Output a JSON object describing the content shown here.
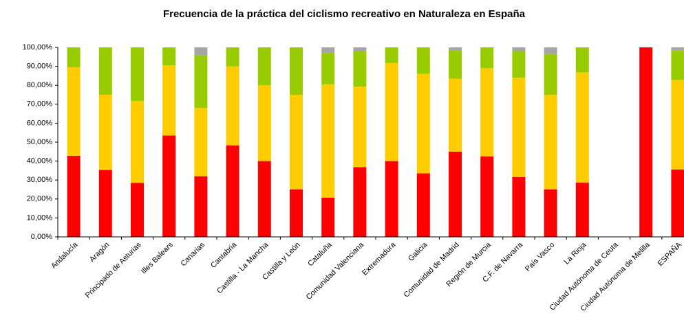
{
  "chart_data": {
    "type": "stacked_bar",
    "title": "Frecuencia de la práctica del ciclismo recreativo en Naturaleza en España",
    "categories": [
      "Andalucía",
      "Aragón",
      "Principado de Asturias",
      "Illes Balears",
      "Canarias",
      "Cantabria",
      "Castilla - La Mancha",
      "Castilla y León",
      "Cataluña",
      "Comunidad Valenciana",
      "Extremadura",
      "Galicia",
      "Comunidad de Madrid",
      "Región de Murcia",
      "C.F. de Navarra",
      "País Vasco",
      "La Rioja",
      "Ciudad Autónoma de Ceuta",
      "Ciudad Autónoma de Melilla",
      "ESPAÑA"
    ],
    "series": [
      {
        "color": "#ff0000",
        "values": [
          42.8,
          35.3,
          28.5,
          53.5,
          32,
          48.3,
          40,
          25,
          20.7,
          36.8,
          40,
          33.5,
          45,
          42.5,
          31.6,
          25,
          28.6,
          0,
          100,
          35.6
        ]
      },
      {
        "color": "#ffcc00",
        "values": [
          46.7,
          39.7,
          43.2,
          37,
          36,
          41.7,
          40,
          50,
          59.8,
          42.5,
          51.7,
          52.5,
          38.5,
          46.5,
          52.4,
          50,
          58.2,
          0,
          0,
          47.2
        ]
      },
      {
        "color": "#99cc00",
        "values": [
          10.5,
          25,
          28.3,
          9.5,
          27.8,
          10,
          20,
          25,
          16.5,
          18.7,
          8.3,
          14,
          15,
          11,
          14,
          21.5,
          13.2,
          0,
          0,
          15.5
        ]
      },
      {
        "color": "#a6a6a6",
        "values": [
          0,
          0,
          0,
          0,
          4.2,
          0,
          0,
          0,
          3,
          2,
          0,
          0,
          1.5,
          0,
          2,
          3.5,
          0,
          0,
          0,
          1.7
        ]
      }
    ],
    "ylim": [
      0,
      100
    ],
    "yticks": [
      {
        "value": 0,
        "label": "0,00%"
      },
      {
        "value": 10,
        "label": "10,00%"
      },
      {
        "value": 20,
        "label": "20,00%"
      },
      {
        "value": 30,
        "label": "30,00%"
      },
      {
        "value": 40,
        "label": "40,00%"
      },
      {
        "value": 50,
        "label": "50,00%"
      },
      {
        "value": 60,
        "label": "60,00%"
      },
      {
        "value": 70,
        "label": "70,00%"
      },
      {
        "value": 80,
        "label": "80,00%"
      },
      {
        "value": 90,
        "label": "90,00%"
      },
      {
        "value": 100,
        "label": "100,00%"
      }
    ]
  }
}
